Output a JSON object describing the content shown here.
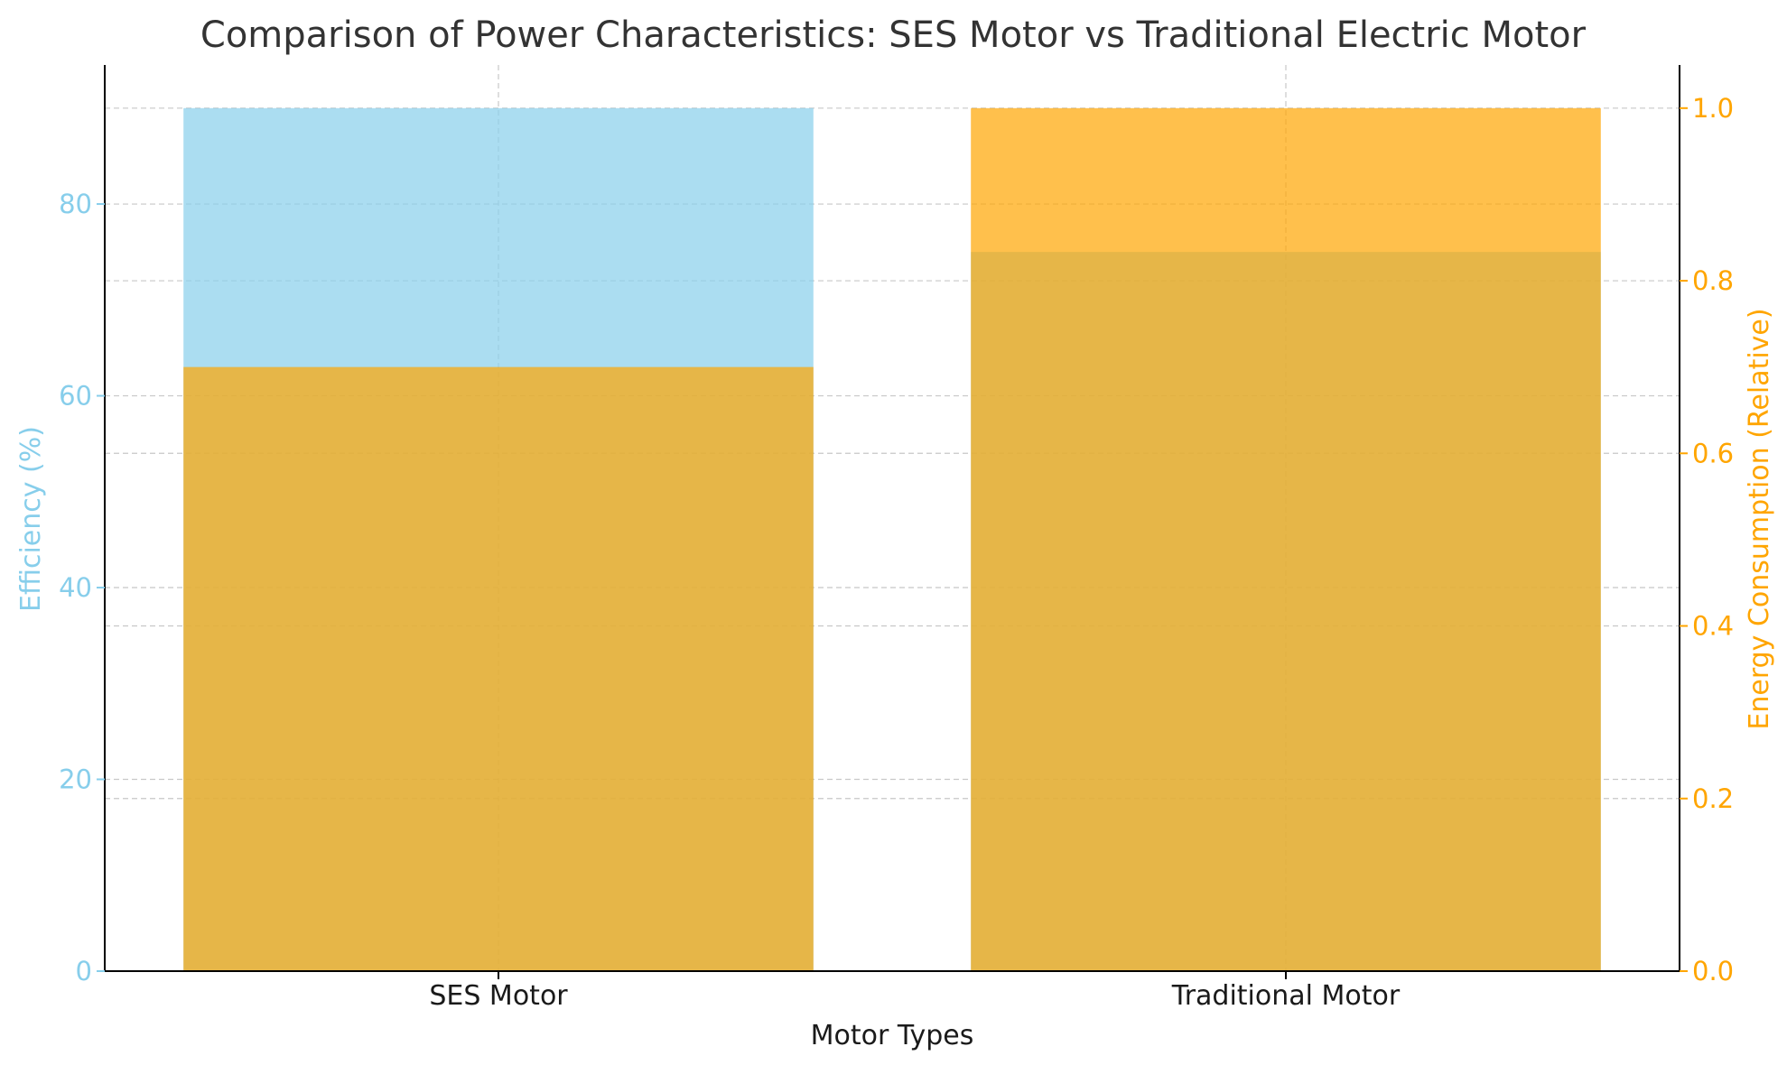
{
  "chart_data": {
    "type": "bar",
    "title": "Comparison of Power Characteristics: SES Motor vs Traditional Electric Motor",
    "xlabel": "Motor Types",
    "ylabel_left": "Efficiency (%)",
    "ylabel_right": "Energy Consumption (Relative)",
    "categories": [
      "SES Motor",
      "Traditional Motor"
    ],
    "series": [
      {
        "axis": "left",
        "values": [
          90,
          75
        ],
        "color": "#87CEEB",
        "opacity": 0.7
      },
      {
        "axis": "right",
        "values": [
          0.7,
          1.0
        ],
        "color": "#FFA500",
        "opacity": 0.7
      }
    ],
    "ylim_left": [
      0,
      94.5
    ],
    "ylim_right": [
      0,
      1.05
    ],
    "yticks_left": [
      "0",
      "20",
      "40",
      "60",
      "80"
    ],
    "yticks_right": [
      "0.0",
      "0.2",
      "0.4",
      "0.6",
      "0.8",
      "1.0"
    ],
    "ytick_values_left": [
      0,
      20,
      40,
      60,
      80
    ],
    "ytick_values_right": [
      0,
      0.2,
      0.4,
      0.6,
      0.8,
      1.0
    ],
    "grid": true,
    "colors": {
      "left_axis": "#87CEEB",
      "right_axis": "#FFA500",
      "text": "#333333"
    }
  }
}
